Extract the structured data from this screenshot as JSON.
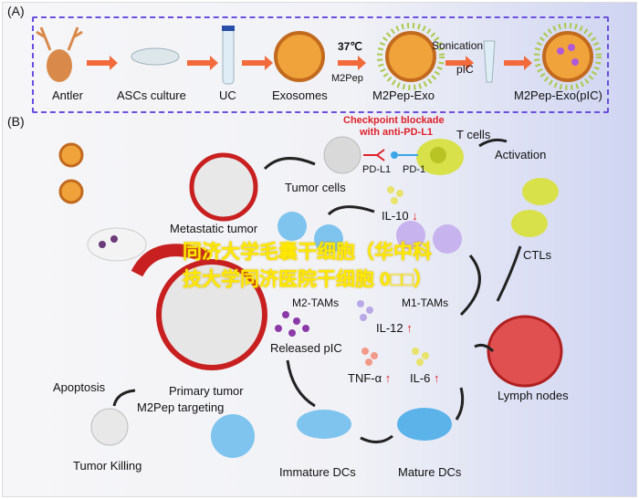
{
  "panel_a": {
    "label": "(A)",
    "steps": [
      "Antler",
      "ASCs culture",
      "UC",
      "Exosomes",
      "M2Pep-Exo",
      "M2Pep-Exo(pIC)"
    ],
    "temp": "37℃",
    "peptide": "M2Pep",
    "sonication": "Sonication",
    "cargo": "pIC"
  },
  "panel_b": {
    "label": "(B)",
    "checkpoint_line1": "Checkpoint blockade",
    "checkpoint_line2": "with anti-PD-L1",
    "t_cells": "T cells",
    "pd_l1": "PD-L1",
    "pd_1": "PD-1",
    "tumor_cells": "Tumor cells",
    "activation": "Activation",
    "metastatic_tumor": "Metastatic tumor",
    "il10": "IL-10",
    "m2_tams": "M2-TAMs",
    "m1_tams": "M1-TAMs",
    "ctls": "CTLs",
    "released_pic": "Released pIC",
    "il12": "IL-12",
    "tnf": "TNF-α",
    "il6": "IL-6",
    "primary_tumor": "Primary tumor",
    "apoptosis": "Apoptosis",
    "m2pep_targeting": "M2Pep targeting",
    "tumor_killing": "Tumor Killing",
    "immature_dcs": "Immature DCs",
    "mature_dcs": "Mature DCs",
    "lymph_nodes": "Lymph nodes",
    "up_arrow": "↑",
    "down_arrow": "↓"
  },
  "watermark": {
    "line1": "同济大学毛囊干细胞（华中科",
    "line2": "技大学同济医院干细胞 0□□）"
  },
  "colors": {
    "arrow": "#f26a3c",
    "dashed_border": "#6a4fe0",
    "accent_red": "#e0202a",
    "watermark": "#ffe800"
  }
}
